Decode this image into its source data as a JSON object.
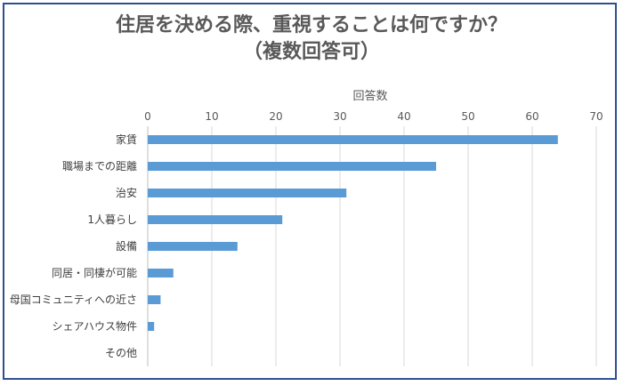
{
  "chart_data": {
    "type": "bar",
    "orientation": "horizontal",
    "title_line1": "住居を決める際、重視することは何ですか？",
    "title_line2": "（複数回答可）",
    "xlabel": "回答数",
    "ylabel": "",
    "xlim": [
      0,
      70
    ],
    "ticks": [
      0,
      10,
      20,
      30,
      40,
      50,
      60,
      70
    ],
    "categories": [
      "家賃",
      "職場までの距離",
      "治安",
      "1人暮らし",
      "設備",
      "同居・同棲が可能",
      "母国コミュニティへの近さ",
      "シェアハウス物件",
      "その他"
    ],
    "values": [
      64,
      45,
      31,
      21,
      14,
      4,
      2,
      1,
      0
    ],
    "bar_color": "#5b9bd5",
    "grid": true,
    "legend": "none",
    "axis_position": "top"
  }
}
